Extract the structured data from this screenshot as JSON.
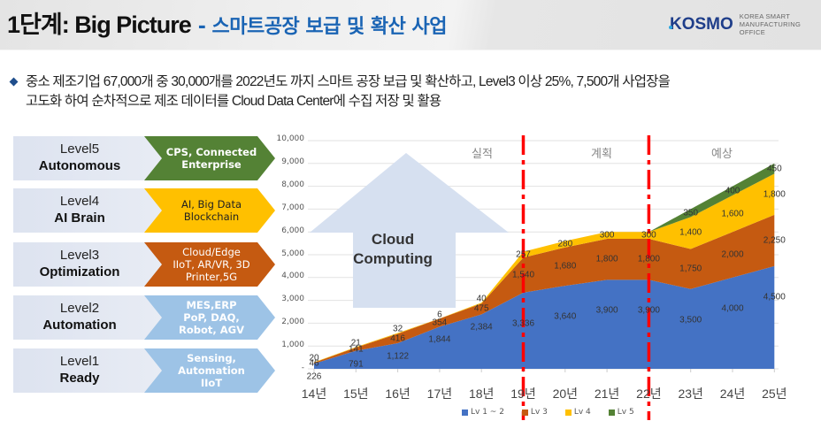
{
  "header": {
    "title_main": "1단계: Big Picture",
    "title_sub": "- 스마트공장 보급 및 확산 사업",
    "logo": {
      "mark": "KOSMO",
      "tagline_1": "KOREA SMART",
      "tagline_2": "MANUFACTURING OFFICE"
    }
  },
  "bullet": {
    "line1": "중소 제조기업 67,000개 중 30,000개를 2022년도 까지 스마트 공장 보급 및 확산하고, Level3 이상 25%, 7,500개 사업장을",
    "line2": "고도화 하여 순차적으로 제조 데이터를 Cloud Data Center에 수집 저장 및 활용"
  },
  "levels": [
    {
      "level": "Level5",
      "name": "Autonomous",
      "tech": [
        "CPS, Connected",
        "Enterprise"
      ],
      "color": "#548235"
    },
    {
      "level": "Level4",
      "name": "AI Brain",
      "tech": [
        "AI, Big Data",
        "Blockchain"
      ],
      "color": "#ffc000"
    },
    {
      "level": "Level3",
      "name": "Optimization",
      "tech": [
        "Cloud/Edge",
        "IIoT, AR/VR, 3D",
        "Printer,5G"
      ],
      "color": "#c55a11"
    },
    {
      "level": "Level2",
      "name": "Automation",
      "tech": [
        "MES,ERP",
        "PoP, DAQ,",
        "Robot, AGV"
      ],
      "color": "#9dc3e6"
    },
    {
      "level": "Level1",
      "name": "Ready",
      "tech": [
        "Sensing,",
        "Automation",
        "IIoT"
      ],
      "color": "#9dc3e6"
    }
  ],
  "cloud_arrow": {
    "line1": "Cloud",
    "line2": "Computing"
  },
  "sections": {
    "actual": "실적",
    "plan": "계획",
    "forecast": "예상"
  },
  "chart_data": {
    "type": "area",
    "stacked": true,
    "title": "",
    "xlabel": "",
    "ylabel": "",
    "categories": [
      "14년",
      "15년",
      "16년",
      "17년",
      "18년",
      "19년",
      "20년",
      "21년",
      "22년",
      "23년",
      "24년",
      "25년"
    ],
    "ylim": [
      0,
      10000
    ],
    "yticks": [
      "-",
      "1,000",
      "2,000",
      "3,000",
      "4,000",
      "5,000",
      "6,000",
      "7,000",
      "8,000",
      "9,000",
      "10,000"
    ],
    "grid": true,
    "legend_position": "bottom",
    "series": [
      {
        "name": "Lv 1 ~ 2",
        "color": "#4472c4",
        "values": [
          226,
          791,
          1122,
          1844,
          2384,
          3336,
          3640,
          3900,
          3900,
          3500,
          4000,
          4500
        ],
        "labels": [
          "226",
          "791",
          "1,122",
          "1,844",
          "2,384",
          "3,336",
          "3,640",
          "3,900",
          "3,900",
          "3,500",
          "4,000",
          "4,500"
        ]
      },
      {
        "name": "Lv 3",
        "color": "#c55a11",
        "values": [
          46,
          141,
          416,
          354,
          475,
          1540,
          1680,
          1800,
          1800,
          1750,
          2000,
          2250
        ],
        "labels": [
          "46",
          "141",
          "416",
          "354",
          "475",
          "1,540",
          "1,680",
          "1,800",
          "1,800",
          "1,750",
          "2,000",
          "2,250"
        ]
      },
      {
        "name": "Lv 4",
        "color": "#ffc000",
        "values": [
          20,
          21,
          32,
          6,
          40,
          257,
          280,
          300,
          300,
          1400,
          1600,
          1800
        ],
        "labels": [
          "20",
          "21",
          "32",
          "6",
          "40",
          "257",
          "280",
          "300",
          "300",
          "1,400",
          "1,600",
          "1,800"
        ]
      },
      {
        "name": "Lv 5",
        "color": "#548235",
        "values": [
          0,
          0,
          0,
          0,
          0,
          0,
          0,
          0,
          0,
          350,
          400,
          450
        ],
        "labels": [
          "",
          "",
          "",
          "",
          "",
          "",
          "",
          "",
          "",
          "350",
          "400",
          "450"
        ]
      }
    ],
    "annotations": [
      {
        "type": "vline",
        "style": "dash-dot",
        "color": "#ff0000",
        "x": "19년"
      },
      {
        "type": "vline",
        "style": "dash-dot",
        "color": "#ff0000",
        "x": "22년"
      },
      {
        "type": "text",
        "text": "실적",
        "region": "14년-19년"
      },
      {
        "type": "text",
        "text": "계획",
        "region": "19년-22년"
      },
      {
        "type": "text",
        "text": "예상",
        "region": "22년-25년"
      }
    ]
  }
}
